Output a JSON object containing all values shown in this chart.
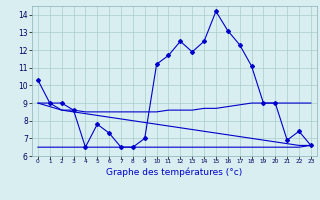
{
  "line1": [
    10.3,
    9.0,
    9.0,
    8.6,
    6.5,
    7.8,
    7.3,
    6.5,
    6.5,
    7.0,
    11.2,
    11.7,
    12.5,
    11.9,
    12.5,
    14.2,
    13.1,
    12.3,
    11.1,
    9.0,
    9.0,
    6.9,
    7.4,
    6.6
  ],
  "line2": [
    9.0,
    9.0,
    8.6,
    8.6,
    8.5,
    8.5,
    8.5,
    8.5,
    8.5,
    8.5,
    8.5,
    8.6,
    8.6,
    8.6,
    8.7,
    8.7,
    8.8,
    8.9,
    9.0,
    9.0,
    9.0,
    9.0,
    9.0,
    9.0
  ],
  "line3": [
    9.0,
    8.8,
    8.6,
    8.5,
    8.4,
    8.3,
    8.2,
    8.1,
    8.0,
    7.9,
    7.8,
    7.7,
    7.6,
    7.5,
    7.4,
    7.3,
    7.2,
    7.1,
    7.0,
    6.9,
    6.8,
    6.7,
    6.6,
    6.6
  ],
  "line4": [
    6.5,
    6.5,
    6.5,
    6.5,
    6.5,
    6.5,
    6.5,
    6.5,
    6.5,
    6.5,
    6.5,
    6.5,
    6.5,
    6.5,
    6.5,
    6.5,
    6.5,
    6.5,
    6.5,
    6.5,
    6.5,
    6.5,
    6.5,
    6.6
  ],
  "x": [
    0,
    1,
    2,
    3,
    4,
    5,
    6,
    7,
    8,
    9,
    10,
    11,
    12,
    13,
    14,
    15,
    16,
    17,
    18,
    19,
    20,
    21,
    22,
    23
  ],
  "xlabel": "Graphe des températures (°c)",
  "ylim": [
    6,
    14.5
  ],
  "yticks": [
    6,
    7,
    8,
    9,
    10,
    11,
    12,
    13,
    14
  ],
  "xticks": [
    0,
    1,
    2,
    3,
    4,
    5,
    6,
    7,
    8,
    9,
    10,
    11,
    12,
    13,
    14,
    15,
    16,
    17,
    18,
    19,
    20,
    21,
    22,
    23
  ],
  "line_color": "#0000cc",
  "bg_color": "#d8eef0",
  "grid_color": "#aacccc"
}
